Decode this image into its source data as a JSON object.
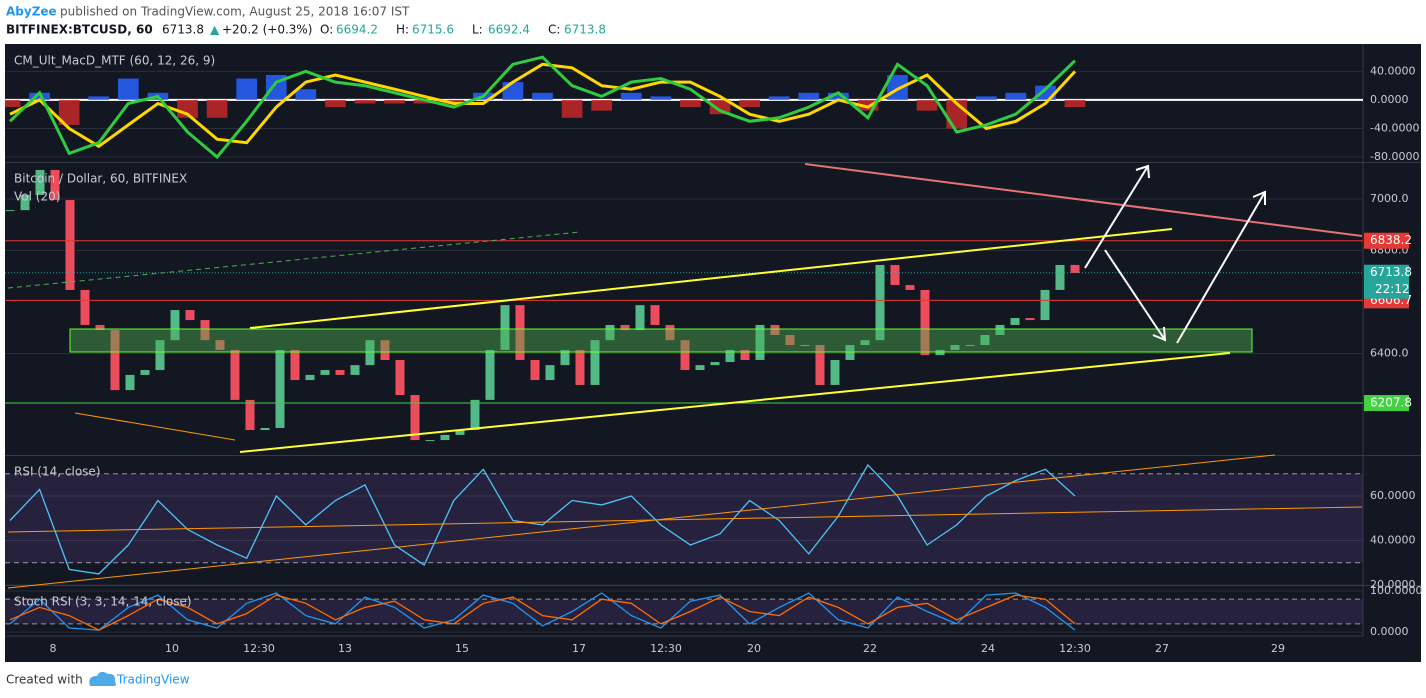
{
  "header": {
    "author": "AbyZee",
    "published": "published on TradingView.com, August 25, 2018 16:07 IST",
    "symbol": "BITFINEX:BTCUSD, 60",
    "last": 6713.8,
    "change": "+20.2 (+0.3%)",
    "ohlc": [
      {
        "label": "O:",
        "value": 6694.2
      },
      {
        "label": "H:",
        "value": 6715.6
      },
      {
        "label": "L:",
        "value": 6692.4
      },
      {
        "label": "C:",
        "value": 6713.8
      }
    ]
  },
  "chart_data": [
    {
      "type": "line",
      "title": "CM_Ult_MacD_MTF (60, 12, 26, 9)",
      "ylim": [
        -87,
        77
      ],
      "zero_line": true,
      "yticks": [
        {
          "value": 40,
          "label": "40.0000"
        },
        {
          "value": 0,
          "label": "0.0000"
        },
        {
          "value": -40,
          "label": "-40.0000"
        },
        {
          "value": -80,
          "label": "-80.0000"
        }
      ],
      "histogram": {
        "colors": [
          "#2962ff",
          "#c62828"
        ],
        "values": [
          -10,
          10,
          -35,
          5,
          30,
          10,
          -25,
          -25,
          30,
          35,
          15,
          -10,
          -5,
          -5,
          -5,
          -5,
          10,
          25,
          10,
          -25,
          -15,
          10,
          5,
          -10,
          -20,
          -10,
          5,
          10,
          10,
          -15,
          35,
          -15,
          -40,
          5,
          10,
          20,
          -10
        ]
      },
      "series": [
        {
          "color": "#ffd600",
          "values": [
            -20,
            0,
            -40,
            -65,
            -35,
            -5,
            -20,
            -55,
            -60,
            -10,
            25,
            35,
            25,
            15,
            5,
            -5,
            -5,
            25,
            50,
            45,
            20,
            15,
            25,
            25,
            5,
            -20,
            -30,
            -20,
            0,
            -10,
            15,
            35,
            -5,
            -40,
            -30,
            -5,
            40
          ]
        },
        {
          "color": "#2ecc40",
          "values": [
            -30,
            10,
            -75,
            -60,
            -5,
            5,
            -45,
            -80,
            -30,
            25,
            40,
            25,
            20,
            10,
            0,
            -10,
            5,
            50,
            60,
            20,
            5,
            25,
            30,
            15,
            -15,
            -30,
            -25,
            -10,
            10,
            -25,
            50,
            20,
            -45,
            -35,
            -20,
            15,
            55
          ]
        }
      ]
    },
    {
      "type": "candlestick",
      "title": "Bitcoin / Dollar, 60, BITFINEX",
      "subtitle": "Vol (20)",
      "ylim": [
        6006,
        7140
      ],
      "yticks": [
        {
          "value": 7000,
          "label": "7000.0"
        },
        {
          "value": 6800,
          "label": "6800.0"
        },
        {
          "value": 6400,
          "label": "6400.0"
        }
      ],
      "colors": {
        "up": "#53b987",
        "down": "#eb4d5c"
      },
      "values": [
        6957,
        7016,
        7113,
        6996,
        6647,
        6511,
        6491,
        6258,
        6317,
        6336,
        6452,
        6569,
        6530,
        6452,
        6414,
        6220,
        6103,
        6111,
        6414,
        6297,
        6317,
        6336,
        6317,
        6355,
        6452,
        6375,
        6239,
        6064,
        6064,
        6084,
        6103,
        6220,
        6414,
        6588,
        6375,
        6297,
        6355,
        6414,
        6278,
        6452,
        6511,
        6491,
        6588,
        6511,
        6452,
        6336,
        6355,
        6367,
        6414,
        6375,
        6511,
        6472,
        6433,
        6433,
        6278,
        6375,
        6433,
        6452,
        6744,
        6666,
        6647,
        6394,
        6414,
        6433,
        6433,
        6472,
        6511,
        6538,
        6530,
        6647,
        6744,
        6713
      ],
      "levels": [
        {
          "value": 6838.2,
          "color": "#e53935"
        },
        {
          "value": 6606.7,
          "color": "#e53935"
        },
        {
          "value": 6207.8,
          "color": "#43d043"
        }
      ],
      "last": {
        "value": 6713.8,
        "color": "#26a69a",
        "countdown": "22:12"
      }
    },
    {
      "type": "line",
      "title": "RSI (14, close)",
      "ylim": [
        20,
        78
      ],
      "bands": [
        30,
        70
      ],
      "yticks": [
        {
          "value": 60,
          "label": "60.0000"
        },
        {
          "value": 40,
          "label": "40.0000"
        },
        {
          "value": 20,
          "label": "20.0000"
        }
      ],
      "series": [
        {
          "color": "#4fc3f7",
          "values": [
            49,
            63,
            27,
            25,
            38,
            58,
            45,
            38,
            32,
            60,
            47,
            58,
            65,
            38,
            29,
            58,
            72,
            49,
            47,
            58,
            56,
            60,
            47,
            38,
            43,
            58,
            49,
            34,
            51,
            74,
            60,
            38,
            47,
            60,
            67,
            72,
            60
          ]
        }
      ]
    },
    {
      "type": "line",
      "title": "Stoch RSI (3, 3, 14, 14, close)",
      "ylim": [
        -7,
        112
      ],
      "bands": [
        20,
        80
      ],
      "yticks": [
        {
          "value": 100,
          "label": "100.0000"
        },
        {
          "value": 0,
          "label": "0.0000"
        }
      ],
      "series": [
        {
          "color": "#2196f3",
          "values": [
            20,
            80,
            10,
            5,
            60,
            90,
            30,
            10,
            70,
            95,
            40,
            20,
            85,
            60,
            10,
            30,
            90,
            70,
            15,
            50,
            95,
            40,
            10,
            75,
            90,
            20,
            60,
            95,
            30,
            10,
            85,
            50,
            20,
            90,
            95,
            60,
            5
          ]
        },
        {
          "color": "#ff6d00",
          "values": [
            30,
            60,
            40,
            5,
            40,
            80,
            60,
            20,
            45,
            90,
            70,
            30,
            60,
            75,
            30,
            20,
            70,
            85,
            40,
            30,
            80,
            70,
            20,
            50,
            85,
            50,
            40,
            85,
            60,
            20,
            60,
            70,
            30,
            60,
            90,
            80,
            20
          ]
        }
      ]
    }
  ],
  "time_labels": [
    "8",
    "10",
    "12:30",
    "13",
    "15",
    "17",
    "12:30",
    "20",
    "22",
    "24",
    "12:30",
    "27",
    "29"
  ],
  "footer": {
    "created": "Created with",
    "brand": "TradingView"
  }
}
